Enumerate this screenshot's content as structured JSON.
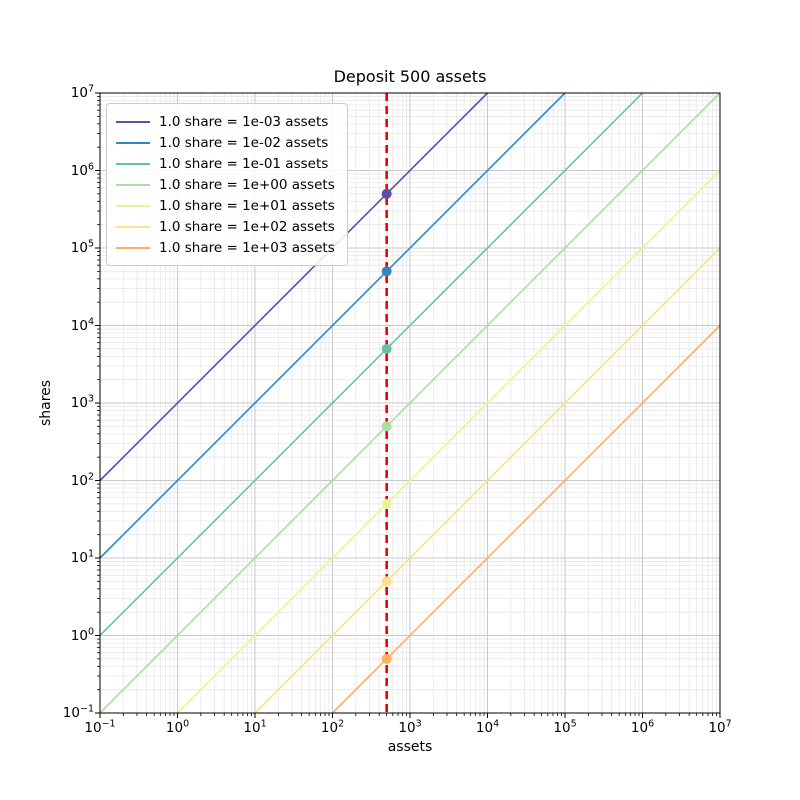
{
  "figure": {
    "background": "#ffffff"
  },
  "chart_data": {
    "type": "line",
    "title": "Deposit 500 assets",
    "xlabel": "assets",
    "ylabel": "shares",
    "xscale": "log",
    "yscale": "log",
    "x_range": [
      0.1,
      10000000
    ],
    "y_range": [
      0.1,
      10000000
    ],
    "x_log10_range": [
      -1,
      7
    ],
    "y_log10_range": [
      -1,
      7
    ],
    "x_tick_exponents": [
      -1,
      0,
      1,
      2,
      3,
      4,
      5,
      6,
      7
    ],
    "y_tick_exponents": [
      -1,
      0,
      1,
      2,
      3,
      4,
      5,
      6,
      7
    ],
    "grid": {
      "which": "both",
      "major_color": "#c9c9c9",
      "minor_color": "#e7e7e7"
    },
    "legend_position": "upper-left",
    "series": [
      {
        "label": "1.0 share = 1e-03 assets",
        "assets_per_share": 0.001,
        "color": "#5e4fa2",
        "point": {
          "assets": 500,
          "shares": 500000
        }
      },
      {
        "label": "1.0 share = 1e-02 assets",
        "assets_per_share": 0.01,
        "color": "#3288bd",
        "point": {
          "assets": 500,
          "shares": 50000
        }
      },
      {
        "label": "1.0 share = 1e-01 assets",
        "assets_per_share": 0.1,
        "color": "#66c2a5",
        "point": {
          "assets": 500,
          "shares": 5000
        }
      },
      {
        "label": "1.0 share = 1e+00 assets",
        "assets_per_share": 1.0,
        "color": "#abdda4",
        "point": {
          "assets": 500,
          "shares": 500
        }
      },
      {
        "label": "1.0 share = 1e+01 assets",
        "assets_per_share": 10.0,
        "color": "#e6f598",
        "point": {
          "assets": 500,
          "shares": 50
        }
      },
      {
        "label": "1.0 share = 1e+02 assets",
        "assets_per_share": 100.0,
        "color": "#fee08b",
        "point": {
          "assets": 500,
          "shares": 5
        }
      },
      {
        "label": "1.0 share = 1e+03 assets",
        "assets_per_share": 1000.0,
        "color": "#fdae61",
        "point": {
          "assets": 500,
          "shares": 0.5
        }
      }
    ],
    "deposit_line": {
      "assets": 500,
      "color": "#ee0000",
      "style": "dashed"
    }
  }
}
